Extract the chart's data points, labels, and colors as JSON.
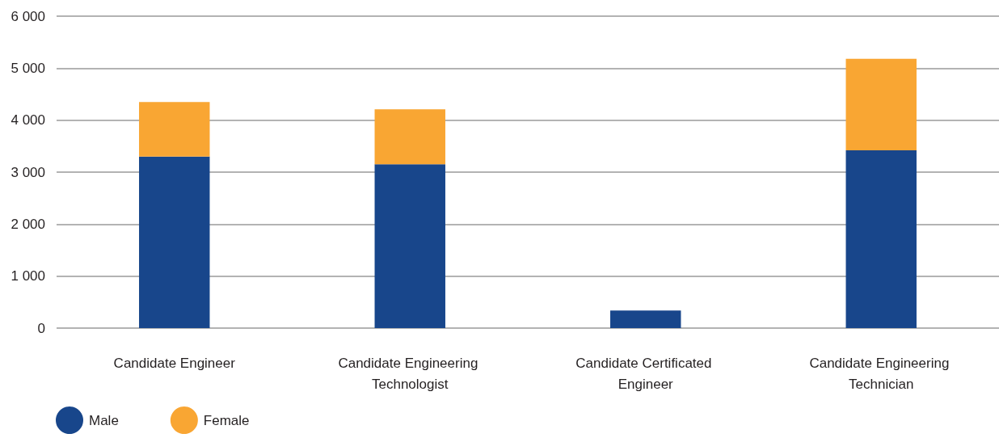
{
  "chart_data": {
    "type": "bar",
    "categories": [
      "Candidate Engineer",
      "Candidate Engineering Technologist",
      "Candidate Certificated Engineer",
      "Candidate Engineering Technician"
    ],
    "series": [
      {
        "name": "Male",
        "color": "#18468b",
        "values": [
          3300,
          3150,
          340,
          3420
        ]
      },
      {
        "name": "Female",
        "color": "#f9a633",
        "values": [
          1050,
          1060,
          null,
          1760
        ]
      }
    ],
    "stacked": true,
    "ylim": [
      0,
      6000
    ],
    "yticks": [
      {
        "value": 0,
        "label": "0"
      },
      {
        "value": 1000,
        "label": "1 000"
      },
      {
        "value": 2000,
        "label": "2 000"
      },
      {
        "value": 3000,
        "label": "3 000"
      },
      {
        "value": 4000,
        "label": "4 000"
      },
      {
        "value": 5000,
        "label": "5 000"
      },
      {
        "value": 6000,
        "label": "6 000"
      }
    ],
    "grid": "y",
    "legend": "bottom left"
  }
}
